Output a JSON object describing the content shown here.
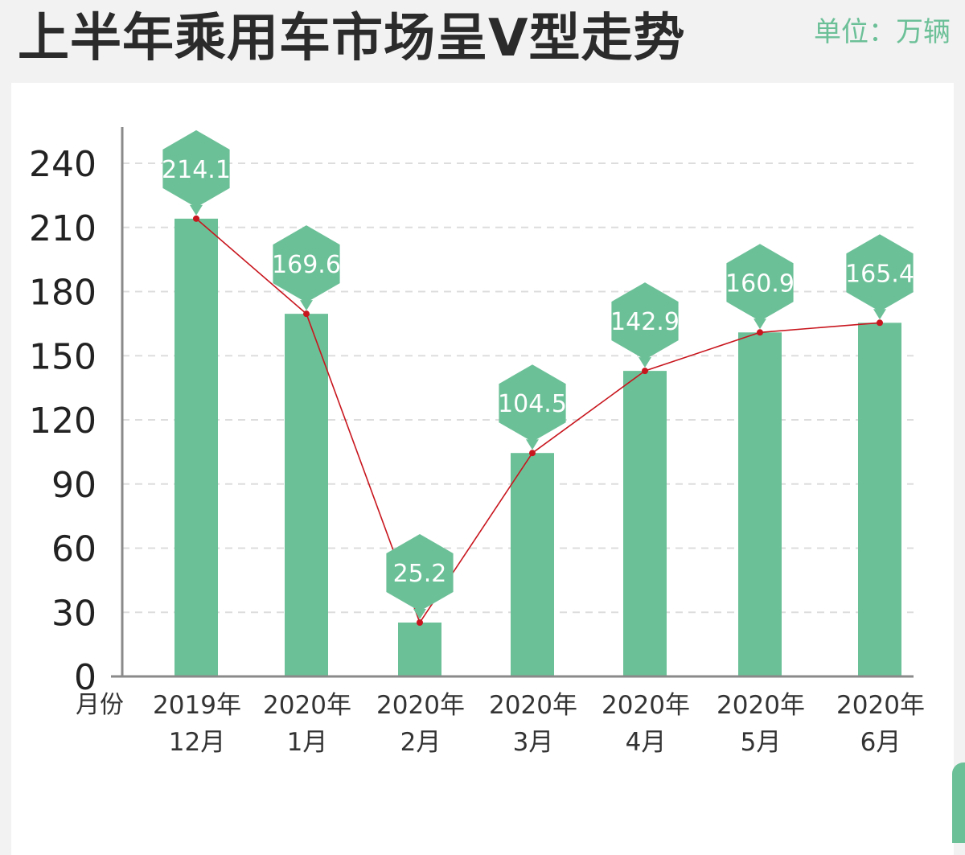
{
  "header": {
    "title": "上半年乘用车市场呈V型走势",
    "unit": "单位：万辆"
  },
  "colors": {
    "bar": "#6cc098",
    "line": "#c8161e",
    "axis": "#8a8a8a",
    "grid": "#dddddd",
    "label_text": "#ffffff"
  },
  "chart_data": {
    "type": "bar",
    "title": "上半年乘用车市场呈V型走势",
    "xlabel": "月份",
    "ylabel": "",
    "ylim": [
      0,
      240
    ],
    "yticks": [
      0,
      30,
      60,
      90,
      120,
      150,
      180,
      210,
      240
    ],
    "grid": true,
    "categories": [
      [
        "2019年",
        "12月"
      ],
      [
        "2020年",
        "1月"
      ],
      [
        "2020年",
        "2月"
      ],
      [
        "2020年",
        "3月"
      ],
      [
        "2020年",
        "4月"
      ],
      [
        "2020年",
        "5月"
      ],
      [
        "2020年",
        "6月"
      ]
    ],
    "values": [
      214.1,
      169.6,
      25.2,
      104.5,
      142.9,
      160.9,
      165.4
    ],
    "value_labels": [
      "214.1",
      "169.6",
      "25.2",
      "104.5",
      "142.9",
      "160.9",
      "165.4"
    ],
    "overlay": "line"
  }
}
